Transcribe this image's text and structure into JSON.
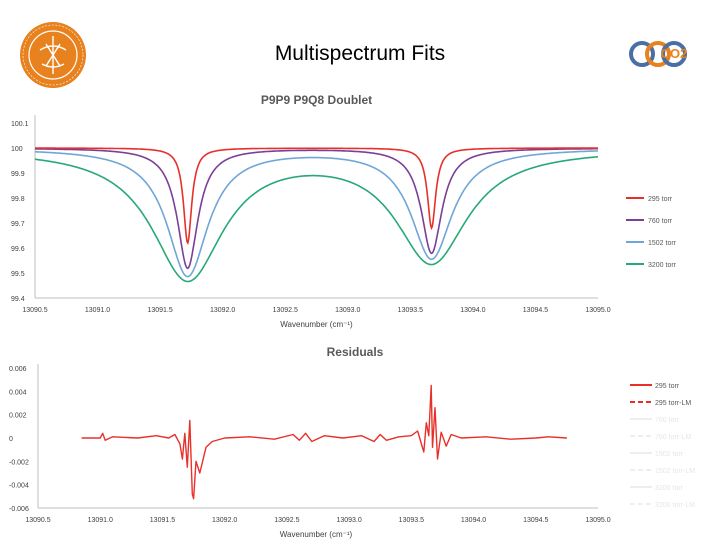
{
  "slide": {
    "title": "Multispectrum Fits",
    "logo_right_text": "CO2"
  },
  "colors": {
    "c295": "#e8302a",
    "c760": "#7b3f98",
    "c1502": "#6fa6d8",
    "c3200": "#27a977",
    "residual": "#e8302a",
    "logo_orange": "#e8821e"
  },
  "chart_data": [
    {
      "type": "line",
      "title": "P9P9 P9Q8 Doublet",
      "xlabel": "Wavenumber (cm⁻¹)",
      "ylabel": "",
      "xlim": [
        13090.5,
        13095.0
      ],
      "ylim": [
        99.4,
        100.1
      ],
      "x_ticks": [
        "13090.5",
        "13091.0",
        "13091.5",
        "13092.0",
        "13092.5",
        "13093.0",
        "13093.5",
        "13094.0",
        "13094.5",
        "13095.0"
      ],
      "y_ticks": [
        "99.4",
        "99.5",
        "99.6",
        "99.7",
        "99.8",
        "99.9",
        "100",
        "100.1"
      ],
      "grid": false,
      "legend": "right",
      "peaks": [
        13091.72,
        13093.67
      ],
      "series": [
        {
          "name": "295 torr",
          "color_key": "c295",
          "depths": [
            0.38,
            0.32
          ],
          "widths": [
            0.04,
            0.04
          ]
        },
        {
          "name": "760 torr",
          "color_key": "c760",
          "depths": [
            0.48,
            0.42
          ],
          "widths": [
            0.1,
            0.1
          ]
        },
        {
          "name": "1502 torr",
          "color_key": "c1502",
          "depths": [
            0.51,
            0.44
          ],
          "widths": [
            0.2,
            0.2
          ]
        },
        {
          "name": "3200 torr",
          "color_key": "c3200",
          "depths": [
            0.52,
            0.45
          ],
          "widths": [
            0.35,
            0.35
          ]
        }
      ]
    },
    {
      "type": "line",
      "title": "Residuals",
      "xlabel": "Wavenumber (cm⁻¹)",
      "ylabel": "",
      "xlim": [
        13090.5,
        13095.0
      ],
      "ylim": [
        -0.006,
        0.006
      ],
      "x_ticks": [
        "13090.5",
        "13091.0",
        "13091.5",
        "13092.0",
        "13092.5",
        "13093.0",
        "13093.5",
        "13094.0",
        "13094.5",
        "13095.0"
      ],
      "y_ticks": [
        "-0.006",
        "-0.004",
        "-0.002",
        "0",
        "0.002",
        "0.004",
        "0.006"
      ],
      "grid": false,
      "legend": "right",
      "legend_entries": [
        {
          "name": "295 torr",
          "style": "solid",
          "color": "#e8302a"
        },
        {
          "name": "295 torr-LM",
          "style": "dashed",
          "color": "#e8302a"
        },
        {
          "name": "760 torr",
          "style": "solid",
          "color": "#eeeeee"
        },
        {
          "name": "760 torr-LM",
          "style": "dashed",
          "color": "#eeeeee"
        },
        {
          "name": "1502 torr",
          "style": "solid",
          "color": "#eeeeee"
        },
        {
          "name": "1502 torr-LM",
          "style": "dashed",
          "color": "#eeeeee"
        },
        {
          "name": "3200 torr",
          "style": "solid",
          "color": "#eeeeee"
        },
        {
          "name": "3200 torr-LM",
          "style": "dashed",
          "color": "#eeeeee"
        }
      ],
      "series": [
        {
          "name": "295 torr",
          "points": [
            [
              13090.85,
              0.0
            ],
            [
              13091.0,
              0.0
            ],
            [
              13091.02,
              0.0004
            ],
            [
              13091.04,
              -0.0002
            ],
            [
              13091.1,
              0.0001
            ],
            [
              13091.3,
              0.0
            ],
            [
              13091.45,
              0.0002
            ],
            [
              13091.55,
              0.0
            ],
            [
              13091.6,
              0.0003
            ],
            [
              13091.64,
              -0.0005
            ],
            [
              13091.66,
              -0.0018
            ],
            [
              13091.68,
              0.0004
            ],
            [
              13091.7,
              -0.0025
            ],
            [
              13091.72,
              0.0015
            ],
            [
              13091.74,
              -0.0048
            ],
            [
              13091.75,
              -0.0052
            ],
            [
              13091.77,
              -0.002
            ],
            [
              13091.8,
              -0.003
            ],
            [
              13091.85,
              -0.0008
            ],
            [
              13091.9,
              -0.0003
            ],
            [
              13092.0,
              0.0
            ],
            [
              13092.2,
              0.0001
            ],
            [
              13092.4,
              -0.0001
            ],
            [
              13092.55,
              0.0003
            ],
            [
              13092.6,
              -0.0002
            ],
            [
              13092.65,
              0.0004
            ],
            [
              13092.7,
              -0.0003
            ],
            [
              13092.8,
              0.0002
            ],
            [
              13092.95,
              0.0
            ],
            [
              13093.1,
              0.0002
            ],
            [
              13093.2,
              -0.0003
            ],
            [
              13093.25,
              0.0003
            ],
            [
              13093.3,
              -0.0002
            ],
            [
              13093.4,
              0.0001
            ],
            [
              13093.5,
              0.0002
            ],
            [
              13093.55,
              0.0006
            ],
            [
              13093.6,
              -0.0012
            ],
            [
              13093.62,
              0.0013
            ],
            [
              13093.64,
              0.0002
            ],
            [
              13093.66,
              0.0045
            ],
            [
              13093.67,
              -0.0008
            ],
            [
              13093.69,
              0.0026
            ],
            [
              13093.71,
              -0.0018
            ],
            [
              13093.74,
              0.0005
            ],
            [
              13093.78,
              -0.0007
            ],
            [
              13093.82,
              0.0003
            ],
            [
              13093.9,
              0.0
            ],
            [
              13094.1,
              0.0001
            ],
            [
              13094.3,
              -0.0001
            ],
            [
              13094.5,
              0.0
            ],
            [
              13094.6,
              0.0001
            ],
            [
              13094.75,
              0.0
            ]
          ]
        }
      ]
    }
  ]
}
